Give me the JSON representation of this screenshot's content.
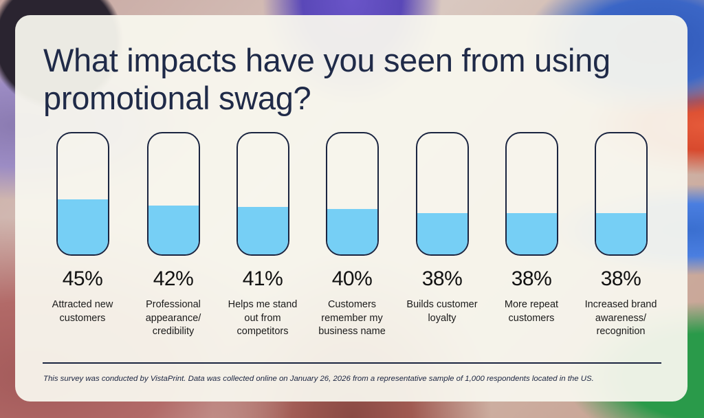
{
  "title": "What impacts have you seen from using promotional swag?",
  "colors": {
    "fill": "#76cff5",
    "outline": "#1a2440",
    "title": "#1f2a48",
    "card": "#f8f6ee"
  },
  "items": [
    {
      "pct": "45%",
      "value": 45,
      "label": "Attracted new customers"
    },
    {
      "pct": "42%",
      "value": 42,
      "label": "Professional appearance/ credibility"
    },
    {
      "pct": "41%",
      "value": 41,
      "label": "Helps me stand out from competitors"
    },
    {
      "pct": "40%",
      "value": 40,
      "label": "Customers remember my business name"
    },
    {
      "pct": "38%",
      "value": 38,
      "label": "Builds customer loyalty"
    },
    {
      "pct": "38%",
      "value": 38,
      "label": "More repeat customers"
    },
    {
      "pct": "38%",
      "value": 38,
      "label": "Increased brand awareness/ recognition"
    }
  ],
  "footnote": "This survey was conducted by VistaPrint. Data was collected online on January 26, 2026 from a representative sample of 1,000 respondents located in the US.",
  "chart_data": {
    "type": "bar",
    "title": "What impacts have you seen from using promotional swag?",
    "categories": [
      "Attracted new customers",
      "Professional appearance/credibility",
      "Helps me stand out from competitors",
      "Customers remember my business name",
      "Builds customer loyalty",
      "More repeat customers",
      "Increased brand awareness/recognition"
    ],
    "values": [
      45,
      42,
      41,
      40,
      38,
      38,
      38
    ],
    "unit": "%",
    "xlabel": "",
    "ylabel": "",
    "ylim": [
      0,
      100
    ],
    "grid": false,
    "legend": "none",
    "style": "rounded tube fill gauges, value labels below each tube",
    "note": "This survey was conducted by VistaPrint. Data was collected online on January 26, 2026 from a representative sample of 1,000 respondents located in the US."
  }
}
